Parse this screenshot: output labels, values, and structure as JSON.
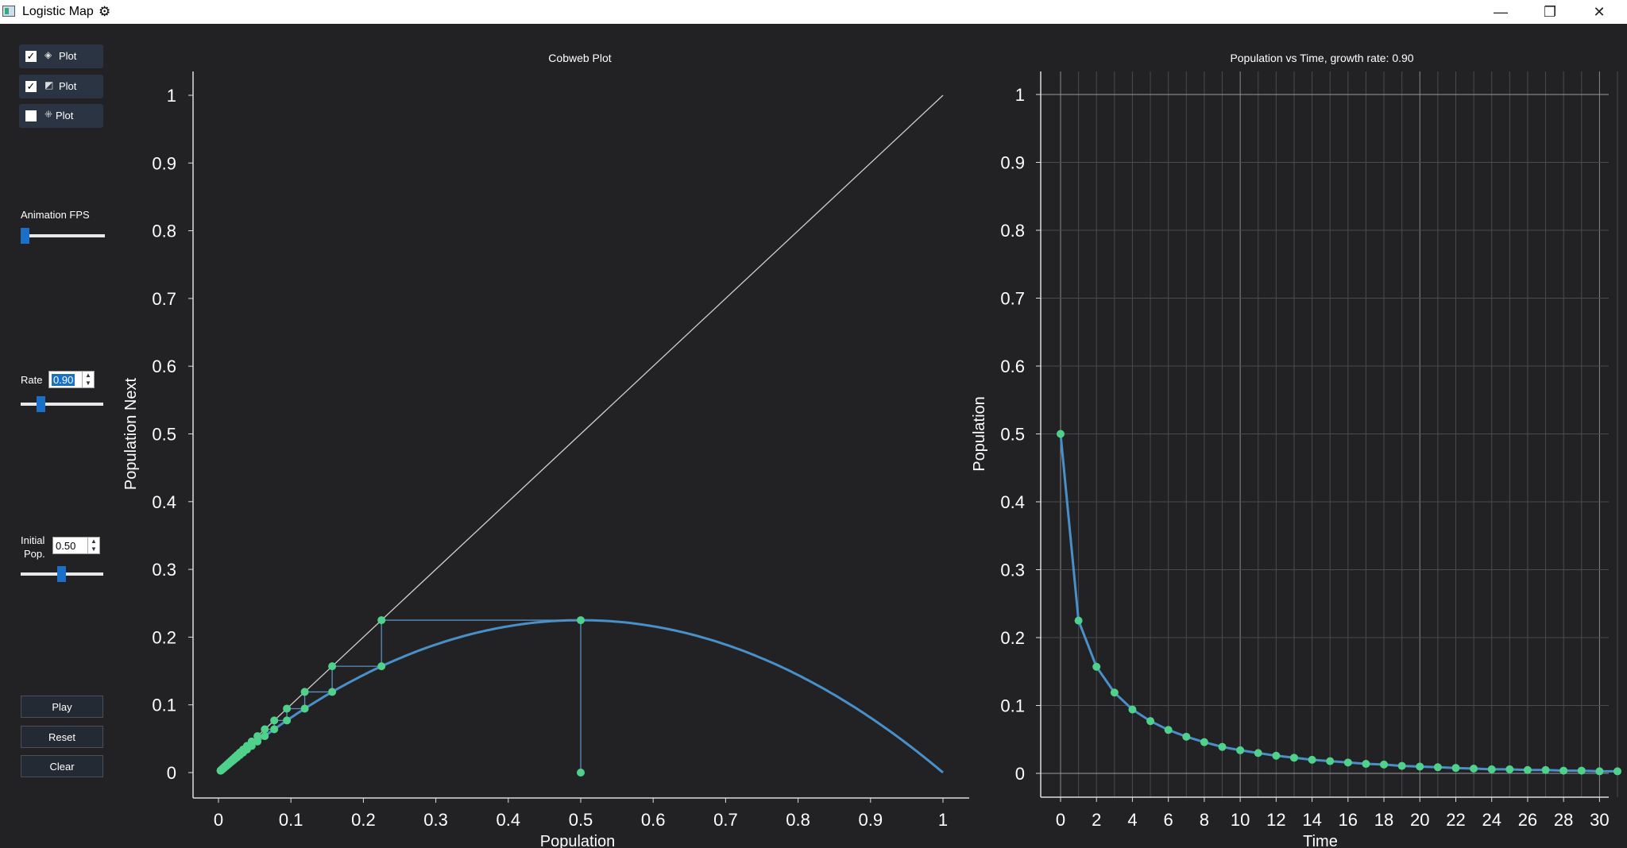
{
  "window": {
    "title": "Logistic Map",
    "title_icon": "settings-gear-icon",
    "controls": {
      "minimize": "—",
      "maximize": "❐",
      "close": "✕"
    }
  },
  "sidebar": {
    "toggles": [
      {
        "label": "Plot",
        "checked": true,
        "icon": "cobweb-icon"
      },
      {
        "label": "Plot",
        "checked": true,
        "icon": "line-chart-icon"
      },
      {
        "label": "Plot",
        "checked": false,
        "icon": "scatter-icon"
      }
    ],
    "fps_label": "Animation FPS",
    "fps_level": 0.05,
    "rate_label": "Rate",
    "rate_value": "0.90",
    "rate_level": 0.23,
    "init_label_line1": "Initial",
    "init_label_line2": "Pop.",
    "init_value": "0.50",
    "init_level": 0.5,
    "buttons": {
      "play": "Play",
      "reset": "Reset",
      "clear": "Clear"
    }
  },
  "colors": {
    "background": "#222225",
    "curve": "#4a90c8",
    "point": "#4fd18b",
    "diagonal": "#cfcfcf",
    "cobweb": "#5a8fbf",
    "accent": "#1a6fc8"
  },
  "chart_data": [
    {
      "type": "line",
      "title": "Cobweb Plot",
      "xlabel": "Population",
      "ylabel": "Population Next",
      "xlim": [
        0,
        1
      ],
      "ylim": [
        0,
        1
      ],
      "xticks": [
        "0",
        "0.1",
        "0.2",
        "0.3",
        "0.4",
        "0.5",
        "0.6",
        "0.7",
        "0.8",
        "0.9",
        "1"
      ],
      "yticks": [
        "0",
        "0.1",
        "0.2",
        "0.3",
        "0.4",
        "0.5",
        "0.6",
        "0.7",
        "0.8",
        "0.9",
        "1"
      ],
      "grid": false,
      "curve": "y = 0.9 x (1 - x)",
      "diagonal": "y = x",
      "rate": 0.9,
      "initial_population": 0.5,
      "iterations": 31
    },
    {
      "type": "line",
      "title": "Population vs Time, growth rate: 0.90",
      "xlabel": "Time",
      "ylabel": "Population",
      "xlim": [
        0,
        31
      ],
      "ylim": [
        0,
        1
      ],
      "xticks": [
        "0",
        "2",
        "4",
        "6",
        "8",
        "10",
        "12",
        "14",
        "16",
        "18",
        "20",
        "22",
        "24",
        "26",
        "28",
        "30"
      ],
      "yticks": [
        "0",
        "0.1",
        "0.2",
        "0.3",
        "0.4",
        "0.5",
        "0.6",
        "0.7",
        "0.8",
        "0.9",
        "1"
      ],
      "grid": true,
      "x": [
        0,
        1,
        2,
        3,
        4,
        5,
        6,
        7,
        8,
        9,
        10,
        11,
        12,
        13,
        14,
        15,
        16,
        17,
        18,
        19,
        20,
        21,
        22,
        23,
        24,
        25,
        26,
        27,
        28,
        29,
        30,
        31
      ],
      "y": [
        0.5,
        0.225,
        0.157,
        0.119,
        0.094,
        0.077,
        0.064,
        0.054,
        0.046,
        0.039,
        0.034,
        0.03,
        0.026,
        0.023,
        0.02,
        0.018,
        0.016,
        0.014,
        0.013,
        0.011,
        0.01,
        0.009,
        0.008,
        0.007,
        0.006,
        0.006,
        0.005,
        0.005,
        0.004,
        0.004,
        0.003,
        0.003
      ]
    }
  ]
}
